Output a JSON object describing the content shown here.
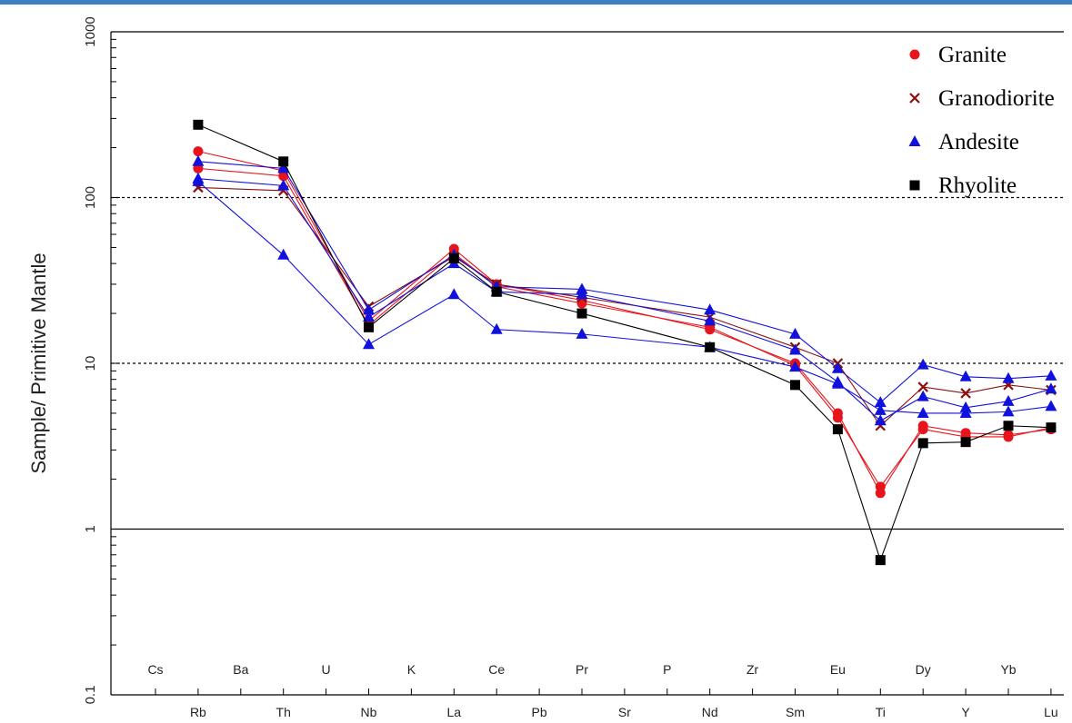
{
  "chart_data": {
    "type": "line",
    "ylabel": "Sample/ Primitive Mantle",
    "yscale": "log",
    "ylim": [
      0.1,
      1000
    ],
    "y_ticks": [
      "0.1",
      "1",
      "10",
      "100",
      "1000"
    ],
    "y_gridlines": [
      {
        "value": 1,
        "style": "solid"
      },
      {
        "value": 10,
        "style": "dotted"
      },
      {
        "value": 100,
        "style": "dotted"
      },
      {
        "value": 1000,
        "style": "solid"
      }
    ],
    "upper_labels": [
      "Cs",
      "Ba",
      "U",
      "K",
      "Ce",
      "Pr",
      "P",
      "Zr",
      "Eu",
      "Dy",
      "Yb"
    ],
    "lower_labels": [
      "Rb",
      "Th",
      "Nb",
      "La",
      "Pb",
      "Sr",
      "Nd",
      "Sm",
      "Ti",
      "Y",
      "Lu"
    ],
    "elements": [
      "Cs",
      "Rb",
      "Ba",
      "Th",
      "U",
      "Nb",
      "K",
      "La",
      "Ce",
      "Pb",
      "Pr",
      "Sr",
      "P",
      "Nd",
      "Zr",
      "Sm",
      "Eu",
      "Ti",
      "Dy",
      "Y",
      "Yb",
      "Lu"
    ],
    "legend": [
      {
        "label": "Granite",
        "marker": "circle",
        "color": "#e8141b"
      },
      {
        "label": "Granodiorite",
        "marker": "x",
        "color": "#8b0f0f"
      },
      {
        "label": "Andesite",
        "marker": "triangle",
        "color": "#1111dd"
      },
      {
        "label": "Rhyolite",
        "marker": "square",
        "color": "#000000"
      }
    ],
    "series": [
      {
        "type": "Granite",
        "color": "#e8141b",
        "marker": "circle",
        "points": [
          [
            "Rb",
            190
          ],
          [
            "Th",
            145
          ],
          [
            "Nb",
            18
          ],
          [
            "La",
            49
          ],
          [
            "Ce",
            30
          ],
          [
            "Pr",
            24
          ],
          [
            "Nd",
            16
          ],
          [
            "Sm",
            10
          ],
          [
            "Eu",
            5.0
          ],
          [
            "Ti",
            1.65
          ],
          [
            "Dy",
            4.2
          ],
          [
            "Y",
            3.8
          ],
          [
            "Yb",
            3.7
          ],
          [
            "Lu",
            4.0
          ]
        ]
      },
      {
        "type": "Granite",
        "color": "#e8141b",
        "marker": "circle",
        "points": [
          [
            "Rb",
            150
          ],
          [
            "Th",
            135
          ],
          [
            "Nb",
            17
          ],
          [
            "La",
            46
          ],
          [
            "Ce",
            29
          ],
          [
            "Pr",
            23
          ],
          [
            "Nd",
            16.5
          ],
          [
            "Sm",
            9.7
          ],
          [
            "Eu",
            4.7
          ],
          [
            "Ti",
            1.8
          ],
          [
            "Dy",
            4.0
          ],
          [
            "Y",
            3.6
          ],
          [
            "Yb",
            3.6
          ],
          [
            "Lu",
            4.1
          ]
        ]
      },
      {
        "type": "Granodiorite",
        "color": "#8b0f0f",
        "marker": "x",
        "points": [
          [
            "Rb",
            115
          ],
          [
            "Th",
            110
          ],
          [
            "Nb",
            22
          ],
          [
            "La",
            44
          ],
          [
            "Ce",
            30
          ],
          [
            "Pr",
            25
          ],
          [
            "Nd",
            19
          ],
          [
            "Sm",
            12.5
          ],
          [
            "Eu",
            10
          ],
          [
            "Ti",
            4.2
          ],
          [
            "Dy",
            7.2
          ],
          [
            "Y",
            6.6
          ],
          [
            "Yb",
            7.4
          ],
          [
            "Lu",
            6.9
          ]
        ]
      },
      {
        "type": "Andesite",
        "color": "#1111dd",
        "marker": "triangle",
        "points": [
          [
            "Rb",
            165
          ],
          [
            "Th",
            150
          ],
          [
            "Nb",
            21
          ],
          [
            "La",
            45
          ],
          [
            "Ce",
            29
          ],
          [
            "Pr",
            28
          ],
          [
            "Nd",
            21
          ],
          [
            "Sm",
            15
          ],
          [
            "Eu",
            9.3
          ],
          [
            "Ti",
            5.8
          ],
          [
            "Dy",
            9.8
          ],
          [
            "Y",
            8.3
          ],
          [
            "Yb",
            8.1
          ],
          [
            "Lu",
            8.4
          ]
        ]
      },
      {
        "type": "Andesite",
        "color": "#1111dd",
        "marker": "triangle",
        "points": [
          [
            "Rb",
            130
          ],
          [
            "Th",
            118
          ],
          [
            "Nb",
            19
          ],
          [
            "La",
            40
          ],
          [
            "Ce",
            27
          ],
          [
            "Pr",
            26
          ],
          [
            "Nd",
            18
          ],
          [
            "Sm",
            12
          ],
          [
            "Eu",
            7.7
          ],
          [
            "Ti",
            4.5
          ],
          [
            "Dy",
            6.3
          ],
          [
            "Y",
            5.4
          ],
          [
            "Yb",
            5.9
          ],
          [
            "Lu",
            7.0
          ]
        ]
      },
      {
        "type": "Andesite",
        "color": "#1111dd",
        "marker": "triangle",
        "points": [
          [
            "Rb",
            125
          ],
          [
            "Th",
            45
          ],
          [
            "Nb",
            13
          ],
          [
            "La",
            26
          ],
          [
            "Ce",
            16
          ],
          [
            "Pr",
            15
          ],
          [
            "Nd",
            12.5
          ],
          [
            "Sm",
            9.5
          ],
          [
            "Eu",
            7.5
          ],
          [
            "Ti",
            5.2
          ],
          [
            "Dy",
            5.0
          ],
          [
            "Y",
            5.0
          ],
          [
            "Yb",
            5.1
          ],
          [
            "Lu",
            5.5
          ]
        ]
      },
      {
        "type": "Rhyolite",
        "color": "#000000",
        "marker": "square",
        "points": [
          [
            "Rb",
            275
          ],
          [
            "Th",
            165
          ],
          [
            "Nb",
            16.5
          ],
          [
            "La",
            43
          ],
          [
            "Ce",
            27
          ],
          [
            "Pr",
            20
          ],
          [
            "Nd",
            12.5
          ],
          [
            "Sm",
            7.4
          ],
          [
            "Eu",
            4.0
          ],
          [
            "Ti",
            0.65
          ],
          [
            "Dy",
            3.3
          ],
          [
            "Y",
            3.35
          ],
          [
            "Yb",
            4.2
          ],
          [
            "Lu",
            4.1
          ]
        ]
      }
    ]
  }
}
